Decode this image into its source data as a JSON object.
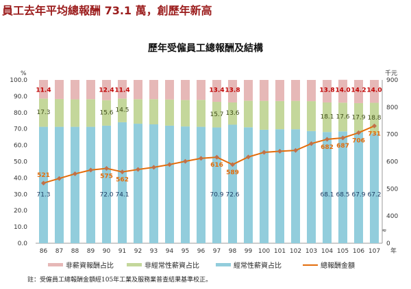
{
  "headline": "員工去年平均總報酬 73.1 萬，創歷年新高",
  "note": "註：受僱員工總報酬金額經105年工業及服務業普查結果基準校正。",
  "chart_data": {
    "type": "bar",
    "stacked": true,
    "title": "歷年受僱員工總報酬及結構",
    "ylabel_left": "%",
    "ylabel_right": "千元",
    "xlabel": "年",
    "ylim_left": [
      0,
      100
    ],
    "left_ticks": [
      "0.0",
      "10.0",
      "20.0",
      "30.0",
      "40.0",
      "50.0",
      "60.0",
      "70.0",
      "80.0",
      "90.0",
      "100.0"
    ],
    "ylim_right": [
      300,
      900
    ],
    "right_axis_break": true,
    "right_ticks": [
      "0",
      "400",
      "500",
      "600",
      "700",
      "800",
      "900"
    ],
    "right_tick_values": [
      300,
      400,
      500,
      600,
      700,
      800,
      900
    ],
    "break_mark": "≈",
    "categories": [
      "86",
      "87",
      "88",
      "89",
      "90",
      "91",
      "92",
      "93",
      "94",
      "95",
      "96",
      "97",
      "98",
      "99",
      "100",
      "101",
      "102",
      "103",
      "104",
      "105",
      "106",
      "107"
    ],
    "series": [
      {
        "name": "經常性薪資占比",
        "color": "#92cddc",
        "label_color": "#17375e",
        "values": [
          71.3,
          71.3,
          71.3,
          71.3,
          72.0,
          74.1,
          73.2,
          72.8,
          72.0,
          71.5,
          71.3,
          70.9,
          72.6,
          71.0,
          69.5,
          69.8,
          69.8,
          68.7,
          68.1,
          68.5,
          67.9,
          67.2
        ],
        "labels": [
          "71.3",
          "",
          "",
          "",
          "72.0",
          "74.1",
          "",
          "",
          "",
          "",
          "",
          "70.9",
          "72.6",
          "",
          "",
          "",
          "",
          "",
          "68.1",
          "68.5",
          "67.9",
          "67.2"
        ]
      },
      {
        "name": "非經常性薪資占比",
        "color": "#c4d79b",
        "label_color": "#3b4a12",
        "values": [
          17.3,
          17.0,
          16.8,
          16.9,
          15.6,
          14.5,
          15.0,
          15.4,
          16.0,
          16.2,
          16.5,
          15.7,
          13.6,
          16.3,
          17.7,
          17.3,
          17.4,
          18.3,
          18.1,
          17.6,
          17.9,
          18.8
        ],
        "labels": [
          "17.3",
          "",
          "",
          "",
          "15.6",
          "14.5",
          "",
          "",
          "",
          "",
          "",
          "15.7",
          "13.6",
          "",
          "",
          "",
          "",
          "",
          "18.1",
          "17.6",
          "17.9",
          "18.8"
        ]
      },
      {
        "name": "非薪資報酬占比",
        "color": "#e6b8b7",
        "label_color": "#c00000",
        "values": [
          11.4,
          11.7,
          11.9,
          11.8,
          12.4,
          11.4,
          11.8,
          11.8,
          12.0,
          12.3,
          12.2,
          13.4,
          13.8,
          12.7,
          12.8,
          12.9,
          12.8,
          13.0,
          13.8,
          14.0,
          14.2,
          14.0
        ],
        "labels": [
          "11.4",
          "",
          "",
          "",
          "12.4",
          "11.4",
          "",
          "",
          "",
          "",
          "",
          "13.4",
          "13.8",
          "",
          "",
          "",
          "",
          "",
          "13.8",
          "14.0",
          "14.2",
          "14.0"
        ]
      }
    ],
    "line": {
      "name": "總報酬金額",
      "color": "#e36c0a",
      "marker_color": "#c0704a",
      "label_color": "#e36c0a",
      "values": [
        521,
        538,
        555,
        569,
        575,
        562,
        571,
        579,
        589,
        601,
        612,
        616,
        589,
        617,
        634,
        638,
        641,
        666,
        682,
        687,
        706,
        731
      ],
      "labels": [
        "521",
        "",
        "",
        "",
        "575",
        "562",
        "",
        "",
        "",
        "",
        "",
        "616",
        "589",
        "",
        "",
        "",
        "",
        "",
        "682",
        "687",
        "706",
        "731"
      ]
    }
  }
}
